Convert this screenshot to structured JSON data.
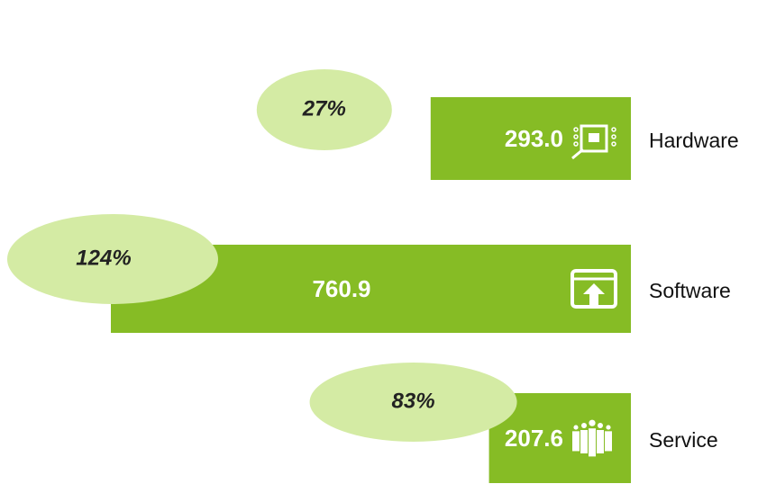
{
  "chart_data": {
    "type": "bar",
    "orientation": "horizontal",
    "categories": [
      "Hardware",
      "Software",
      "Service"
    ],
    "values": [
      293.0,
      760.9,
      207.6
    ],
    "value_labels": [
      "293.0",
      "760.9",
      "207.6"
    ],
    "color": "#86bc25",
    "growth": {
      "values": [
        27,
        124,
        83
      ],
      "value_labels": [
        "27%",
        "124%",
        "83%"
      ],
      "color": "#d4eba4"
    }
  }
}
